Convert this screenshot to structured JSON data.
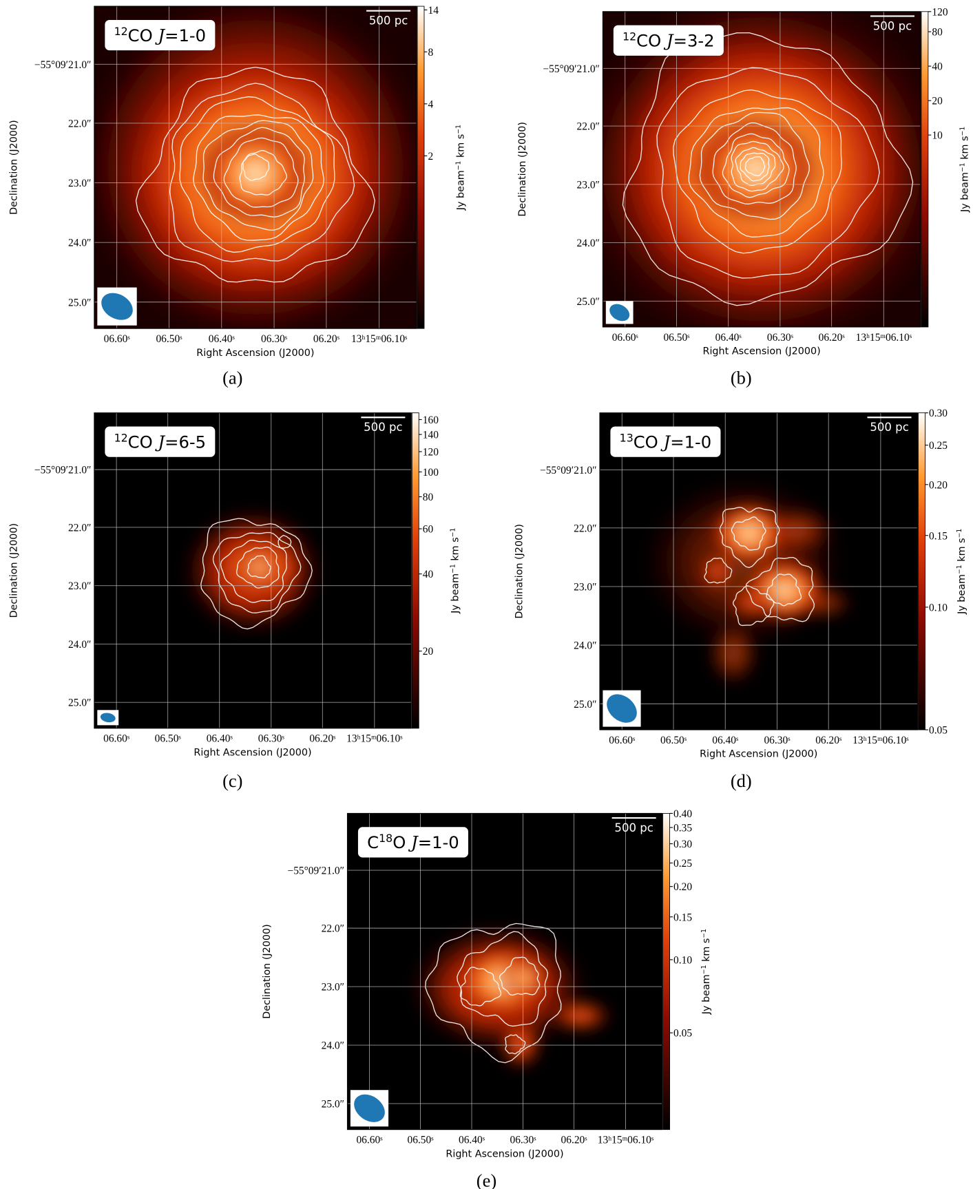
{
  "panels": [
    {
      "caption": "(a)",
      "label": [
        {
          "text": "12",
          "style": "sup"
        },
        {
          "text": "CO ",
          "style": "normal"
        },
        {
          "text": "J",
          "style": "italic"
        },
        {
          "text": "=1-0",
          "style": "normal"
        }
      ],
      "scalebar": "500 pc",
      "xlabel": "Right Ascension (J2000)",
      "ylabel": "Declination (J2000)",
      "ra_ticks": [
        "06.60ˢ",
        "06.50ˢ",
        "06.40ˢ",
        "06.30ˢ",
        "06.20ˢ",
        "13ʰ15ᵐ06.10ˢ"
      ],
      "dec_ticks": [
        "−55°09′21.0″",
        "22.0″",
        "23.0″",
        "24.0″",
        "25.0″"
      ],
      "colorbar": {
        "label": [
          {
            "text": "Jy beam",
            "style": "normal"
          },
          {
            "text": "−1",
            "style": "sup"
          },
          {
            "text": " km s",
            "style": "normal"
          },
          {
            "text": "−1",
            "style": "sup"
          }
        ],
        "scale": "log",
        "lim": [
          0.2,
          14.7
        ],
        "ticks": [
          2,
          4,
          8,
          14
        ]
      }
    },
    {
      "caption": "(b)",
      "label": [
        {
          "text": "12",
          "style": "sup"
        },
        {
          "text": "CO ",
          "style": "normal"
        },
        {
          "text": "J",
          "style": "italic"
        },
        {
          "text": "=3-2",
          "style": "normal"
        }
      ],
      "scalebar": "500 pc",
      "xlabel": "Right Ascension (J2000)",
      "ylabel": "Declination (J2000)",
      "ra_ticks": [
        "06.60ˢ",
        "06.50ˢ",
        "06.40ˢ",
        "06.30ˢ",
        "06.20ˢ",
        "13ʰ15ᵐ06.10ˢ"
      ],
      "dec_ticks": [
        "−55°09′21.0″",
        "22.0″",
        "23.0″",
        "24.0″",
        "25.0″"
      ],
      "colorbar": {
        "label": [
          {
            "text": "Jy beam",
            "style": "normal"
          },
          {
            "text": "−1",
            "style": "sup"
          },
          {
            "text": " km s",
            "style": "normal"
          },
          {
            "text": "−1",
            "style": "sup"
          }
        ],
        "scale": "log",
        "lim": [
          0.21,
          120
        ],
        "ticks": [
          10,
          20,
          40,
          80,
          120
        ]
      }
    },
    {
      "caption": "(c)",
      "label": [
        {
          "text": "12",
          "style": "sup"
        },
        {
          "text": "CO ",
          "style": "normal"
        },
        {
          "text": "J",
          "style": "italic"
        },
        {
          "text": "=6-5",
          "style": "normal"
        }
      ],
      "scalebar": "500 pc",
      "xlabel": "Right Ascension (J2000)",
      "ylabel": "Declination (J2000)",
      "ra_ticks": [
        "06.60ˢ",
        "06.50ˢ",
        "06.40ˢ",
        "06.30ˢ",
        "06.20ˢ",
        "13ʰ15ᵐ06.10ˢ"
      ],
      "dec_ticks": [
        "−55°09′21.0″",
        "22.0″",
        "23.0″",
        "24.0″",
        "25.0″"
      ],
      "colorbar": {
        "label": [
          {
            "text": "Jy beam",
            "style": "normal"
          },
          {
            "text": "−1",
            "style": "sup"
          },
          {
            "text": " km s",
            "style": "normal"
          },
          {
            "text": "−1",
            "style": "sup"
          }
        ],
        "scale": "log",
        "lim": [
          10,
          170
        ],
        "ticks": [
          20,
          40,
          60,
          80,
          100,
          120,
          140,
          160
        ]
      }
    },
    {
      "caption": "(d)",
      "label": [
        {
          "text": "13",
          "style": "sup"
        },
        {
          "text": "CO ",
          "style": "normal"
        },
        {
          "text": "J",
          "style": "italic"
        },
        {
          "text": "=1-0",
          "style": "normal"
        }
      ],
      "scalebar": "500 pc",
      "xlabel": "Right Ascension (J2000)",
      "ylabel": "Declination (J2000)",
      "ra_ticks": [
        "06.60ˢ",
        "06.50ˢ",
        "06.40ˢ",
        "06.30ˢ",
        "06.20ˢ",
        "13ʰ15ᵐ06.10ˢ"
      ],
      "dec_ticks": [
        "−55°09′21.0″",
        "22.0″",
        "23.0″",
        "24.0″",
        "25.0″"
      ],
      "colorbar": {
        "label": [
          {
            "text": "Jy beam",
            "style": "normal"
          },
          {
            "text": "−1",
            "style": "sup"
          },
          {
            "text": " km s",
            "style": "normal"
          },
          {
            "text": "−1",
            "style": "sup"
          }
        ],
        "scale": "log",
        "lim": [
          0.05,
          0.3
        ],
        "ticks": [
          {
            "value": 0.05,
            "label": "0.05"
          },
          {
            "value": 0.1,
            "label": "0.10"
          },
          {
            "value": 0.15,
            "label": "0.15"
          },
          {
            "value": 0.2,
            "label": "0.20"
          },
          {
            "value": 0.25,
            "label": "0.25"
          },
          {
            "value": 0.3,
            "label": "0.30"
          }
        ]
      }
    },
    {
      "caption": "(e)",
      "label": [
        {
          "text": "C",
          "style": "normal"
        },
        {
          "text": "18",
          "style": "sup"
        },
        {
          "text": "O ",
          "style": "normal"
        },
        {
          "text": "J",
          "style": "italic"
        },
        {
          "text": "=1-0",
          "style": "normal"
        }
      ],
      "scalebar": "500 pc",
      "xlabel": "Right Ascension (J2000)",
      "ylabel": "Declination (J2000)",
      "ra_ticks": [
        "06.60ˢ",
        "06.50ˢ",
        "06.40ˢ",
        "06.30ˢ",
        "06.20ˢ",
        "13ʰ15ᵐ06.10ˢ"
      ],
      "dec_ticks": [
        "−55°09′21.0″",
        "22.0″",
        "23.0″",
        "24.0″",
        "25.0″"
      ],
      "colorbar": {
        "label": [
          {
            "text": "Jy beam",
            "style": "normal"
          },
          {
            "text": "−1",
            "style": "sup"
          },
          {
            "text": " km s",
            "style": "normal"
          },
          {
            "text": "−1",
            "style": "sup"
          }
        ],
        "scale": "log",
        "lim": [
          0.02,
          0.4
        ],
        "ticks": [
          {
            "value": 0.05,
            "label": "0.05"
          },
          {
            "value": 0.1,
            "label": "0.10"
          },
          {
            "value": 0.15,
            "label": "0.15"
          },
          {
            "value": 0.2,
            "label": "0.20"
          },
          {
            "value": 0.25,
            "label": "0.25"
          },
          {
            "value": 0.3,
            "label": "0.30"
          },
          {
            "value": 0.35,
            "label": "0.35"
          },
          {
            "value": 0.4,
            "label": "0.40"
          }
        ]
      }
    }
  ]
}
